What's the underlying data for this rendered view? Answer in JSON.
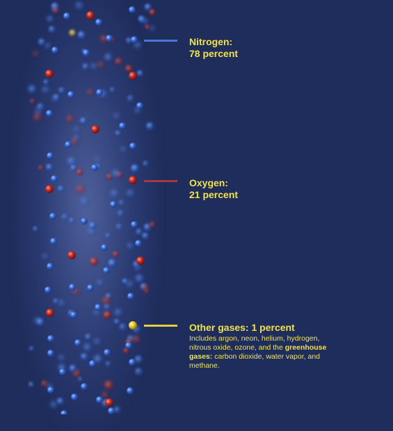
{
  "colors": {
    "background": "#1f2d5c",
    "nitrogen": "#3a6fd8",
    "oxygen": "#c0302a",
    "other": "#e8d23a",
    "label_text": "#f2e34a",
    "nitrogen_line": "#4a78d0",
    "oxygen_line": "#a8383a",
    "other_line": "#e6cf3a"
  },
  "callouts": {
    "nitrogen": {
      "name": "Nitrogen:",
      "value": "78 percent"
    },
    "oxygen": {
      "name": "Oxygen:",
      "value": "21 percent"
    },
    "other": {
      "name": "Other gases: 1 percent",
      "desc_part1": "Includes argon, neon, helium, hydrogen, nitrous oxide, ozone, and the ",
      "desc_bold": "greenhouse gases:",
      "desc_part2": " carbon dioxide, water vapor, and methane."
    }
  }
}
